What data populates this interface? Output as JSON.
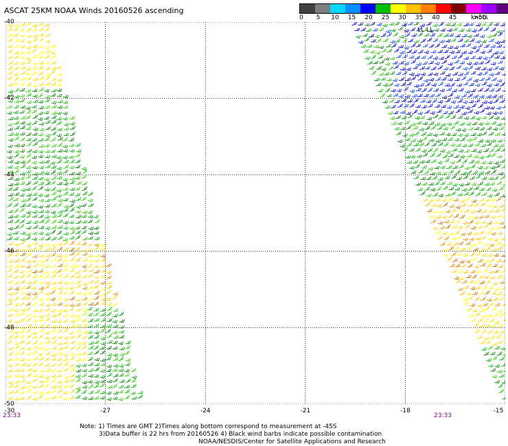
{
  "title": "ASCAT 25KM NOAA Winds 20160526 ascending",
  "colorbar": {
    "colors": [
      "#404040",
      "#7f7f7f",
      "#00d8ff",
      "#0090ff",
      "#0000ff",
      "#00c000",
      "#ffff00",
      "#ffc000",
      "#ff8000",
      "#ff0000",
      "#800000",
      "#ff00ff",
      "#a000ff",
      "#600080"
    ],
    "labels": [
      "0",
      "5",
      "10",
      "15",
      "20",
      "25",
      "30",
      "35",
      "40",
      "45",
      ">50"
    ],
    "unit": "knots"
  },
  "map": {
    "lat_labels": [
      "-40",
      "-42",
      "-44",
      "-46",
      "-48",
      "-50"
    ],
    "lon_labels": [
      "-30",
      "-27",
      "-24",
      "-21",
      "-18",
      "-15"
    ],
    "lon_range": [
      -30,
      -15
    ],
    "lat_range": [
      -40,
      -50
    ],
    "grid_style": "dotted",
    "pass_times": [
      "23:33",
      "23:33"
    ],
    "contamination_marks": "LL LL"
  },
  "swaths": [
    {
      "name": "west-swath",
      "lon_range": [
        -30,
        -27
      ],
      "color_bands": [
        "yellow",
        "green",
        "yellow",
        "orange",
        "green"
      ]
    },
    {
      "name": "east-swath",
      "lon_range": [
        -18,
        -15
      ],
      "color_bands": [
        "green",
        "blue",
        "green",
        "yellow",
        "orange",
        "green"
      ]
    }
  ],
  "notes": {
    "line1": "Note: 1) Times are GMT 2)Times along bottom correspond to measurement at -45S",
    "line2": "3)Data buffer is 22 hrs from 20160526 4) Black wind barbs indicate possible contamination",
    "line3": "NOAA/NESDIS/Center for Satellite Applications and Research"
  }
}
